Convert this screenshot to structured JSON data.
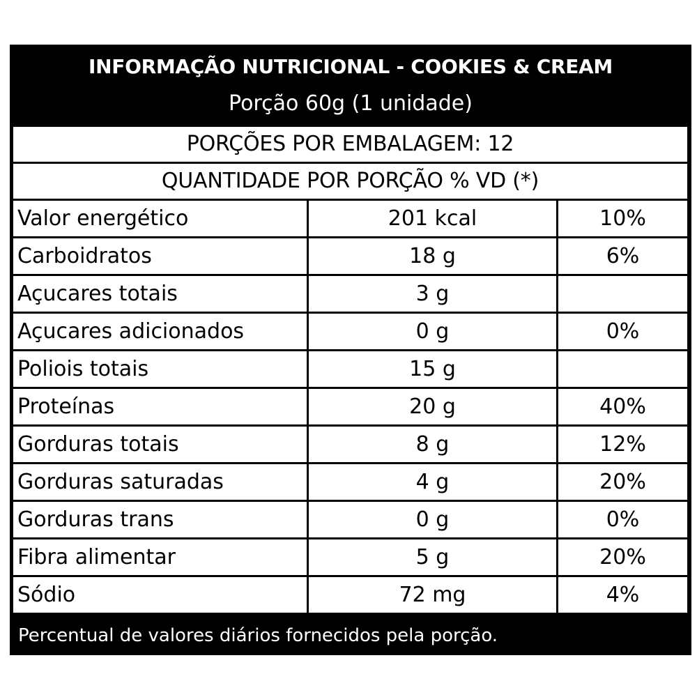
{
  "header": {
    "title": "INFORMAÇÃO NUTRICIONAL - COOKIES & CREAM",
    "portion": "Porção 60g (1 unidade)"
  },
  "servings": "PORÇÕES POR EMBALAGEM: 12",
  "quantity_header": "QUANTIDADE POR PORÇÃO % VD (*)",
  "rows": [
    {
      "name": "Valor energético",
      "amount": "201 kcal",
      "dv": "10%"
    },
    {
      "name": "Carboidratos",
      "amount": "18 g",
      "dv": "6%"
    },
    {
      "name": "Açucares totais",
      "amount": "3 g",
      "dv": ""
    },
    {
      "name": "Açucares adicionados",
      "amount": "0 g",
      "dv": "0%"
    },
    {
      "name": "Poliois totais",
      "amount": "15 g",
      "dv": ""
    },
    {
      "name": "Proteínas",
      "amount": "20 g",
      "dv": "40%"
    },
    {
      "name": "Gorduras totais",
      "amount": "8 g",
      "dv": "12%"
    },
    {
      "name": "Gorduras saturadas",
      "amount": "4 g",
      "dv": "20%"
    },
    {
      "name": "Gorduras trans",
      "amount": "0 g",
      "dv": "0%"
    },
    {
      "name": "Fibra alimentar",
      "amount": "5 g",
      "dv": "20%"
    },
    {
      "name": "Sódio",
      "amount": "72 mg",
      "dv": "4%"
    }
  ],
  "footer": "Percentual de valores diários fornecidos pela porção."
}
